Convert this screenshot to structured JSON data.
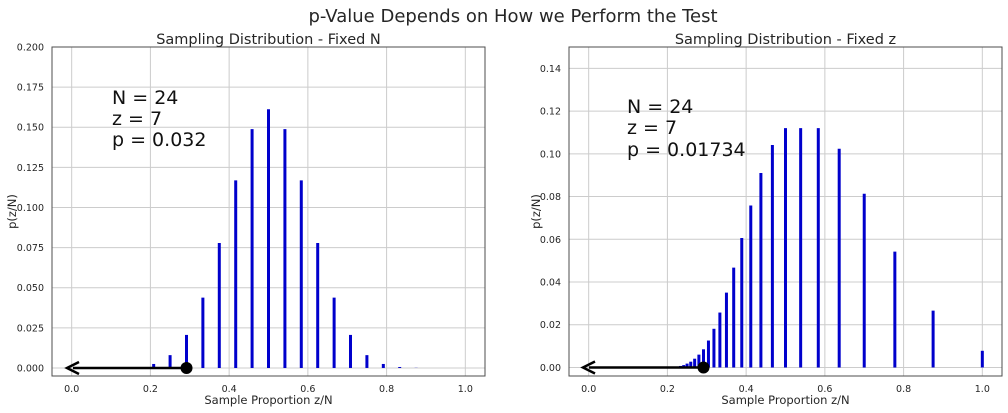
{
  "suptitle": "p-Value Depends on How we Perform the Test",
  "chart_data": [
    {
      "type": "bar",
      "title": "Sampling Distribution - Fixed N",
      "xlabel": "Sample Proportion z/N",
      "ylabel": "p(z/N)",
      "xlim": [
        -0.05,
        1.05
      ],
      "ylim": [
        -0.005,
        0.2
      ],
      "xticks": [
        "0.0",
        "0.2",
        "0.4",
        "0.6",
        "0.8",
        "1.0"
      ],
      "yticks": [
        "0.000",
        "0.025",
        "0.050",
        "0.075",
        "0.100",
        "0.125",
        "0.150",
        "0.175",
        "0.200"
      ],
      "grid": true,
      "color": "#0000cc",
      "annotation": [
        "N = 24",
        "z = 7",
        "p = 0.032"
      ],
      "observed": 0.2917,
      "arrow_to": 0.0,
      "x": [
        0.0,
        0.0417,
        0.0833,
        0.125,
        0.1667,
        0.2083,
        0.25,
        0.2917,
        0.3333,
        0.375,
        0.4167,
        0.4583,
        0.5,
        0.5417,
        0.5833,
        0.625,
        0.6667,
        0.7083,
        0.75,
        0.7917,
        0.8333,
        0.875,
        0.9167,
        0.9583,
        1.0
      ],
      "values": [
        0.0,
        0.0,
        0.0,
        0.0001,
        0.0006,
        0.0025,
        0.008,
        0.0206,
        0.0438,
        0.0779,
        0.1169,
        0.1488,
        0.1612,
        0.1488,
        0.1169,
        0.0779,
        0.0438,
        0.0206,
        0.008,
        0.0025,
        0.0006,
        0.0001,
        0.0,
        0.0,
        0.0
      ]
    },
    {
      "type": "bar",
      "title": "Sampling Distribution - Fixed z",
      "xlabel": "Sample Proportion z/N",
      "ylabel": "p(z/N)",
      "xlim": [
        -0.05,
        1.05
      ],
      "ylim": [
        -0.004,
        0.15
      ],
      "xticks": [
        "0.0",
        "0.2",
        "0.4",
        "0.6",
        "0.8",
        "1.0"
      ],
      "yticks": [
        "0.00",
        "0.02",
        "0.04",
        "0.06",
        "0.08",
        "0.10",
        "0.12",
        "0.14"
      ],
      "grid": true,
      "color": "#0000cc",
      "annotation": [
        "N = 24",
        "z = 7",
        "p = 0.01734"
      ],
      "observed": 0.2917,
      "arrow_to": 0.0,
      "x": [
        0.2333,
        0.2414,
        0.25,
        0.2593,
        0.2692,
        0.28,
        0.2917,
        0.3043,
        0.3182,
        0.3333,
        0.35,
        0.3684,
        0.3889,
        0.4118,
        0.4375,
        0.4667,
        0.5,
        0.5385,
        0.5833,
        0.6364,
        0.7,
        0.7778,
        0.875,
        1.0
      ],
      "values": [
        0.0007,
        0.0011,
        0.0018,
        0.0027,
        0.0041,
        0.006,
        0.0085,
        0.0126,
        0.0181,
        0.0257,
        0.035,
        0.0467,
        0.0606,
        0.0758,
        0.091,
        0.1041,
        0.112,
        0.112,
        0.112,
        0.1024,
        0.0813,
        0.0542,
        0.0266,
        0.0078
      ]
    }
  ]
}
